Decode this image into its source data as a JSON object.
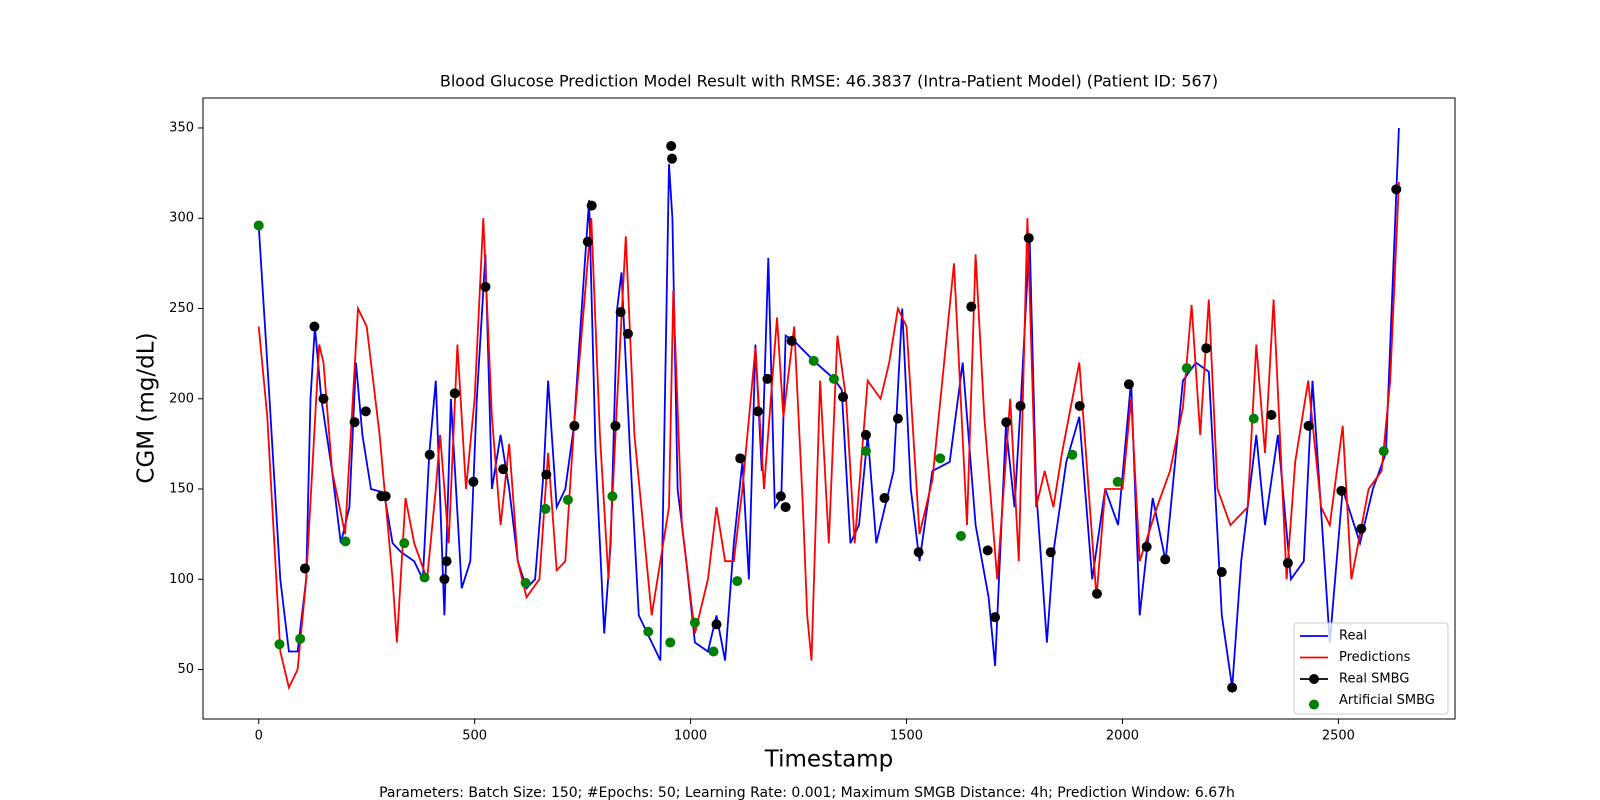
{
  "chart_data": {
    "type": "line",
    "title": "Blood Glucose Prediction Model Result with RMSE: 46.3837 (Intra-Patient Model) (Patient ID: 567)",
    "x_label": "Timestamp",
    "y_label": "CGM (mg/dL)",
    "footnote": "Parameters: Batch Size: 150; #Epochs: 50; Learning Rate: 0.001; Maximum SMGB Distance: 4h; Prediction Window: 6.67h",
    "xlim": [
      -129,
      2770
    ],
    "ylim": [
      22.6,
      366.6
    ],
    "xticks": [
      0,
      500,
      1000,
      1500,
      2000,
      2500
    ],
    "yticks": [
      50,
      100,
      150,
      200,
      250,
      300,
      350
    ],
    "legend": "lower right",
    "series": [
      {
        "name": "Real",
        "color": "#0000ff",
        "kind": "line",
        "x": [
          0,
          25,
          50,
          70,
          90,
          110,
          120,
          130,
          145,
          170,
          190,
          210,
          225,
          240,
          260,
          290,
          310,
          330,
          360,
          380,
          395,
          410,
          430,
          445,
          470,
          490,
          505,
          520,
          525,
          540,
          560,
          580,
          600,
          620,
          640,
          660,
          670,
          690,
          710,
          730,
          745,
          765,
          780,
          800,
          815,
          830,
          840,
          860,
          880,
          900,
          930,
          950,
          958,
          970,
          990,
          1010,
          1040,
          1060,
          1080,
          1100,
          1120,
          1135,
          1150,
          1165,
          1180,
          1195,
          1210,
          1220,
          1240,
          1285,
          1332,
          1350,
          1370,
          1390,
          1410,
          1430,
          1450,
          1470,
          1490,
          1510,
          1530,
          1560,
          1600,
          1630,
          1660,
          1690,
          1705,
          1730,
          1750,
          1765,
          1785,
          1800,
          1825,
          1840,
          1870,
          1900,
          1930,
          1960,
          1990,
          2020,
          2040,
          2070,
          2100,
          2140,
          2170,
          2200,
          2230,
          2254,
          2275,
          2310,
          2330,
          2360,
          2390,
          2420,
          2440,
          2480,
          2510,
          2550,
          2580,
          2610,
          2640
        ],
        "values": [
          296,
          200,
          100,
          60,
          60,
          100,
          200,
          240,
          200,
          160,
          120,
          140,
          220,
          180,
          150,
          148,
          120,
          115,
          110,
          100,
          170,
          210,
          80,
          200,
          95,
          110,
          200,
          260,
          280,
          150,
          180,
          150,
          110,
          95,
          100,
          160,
          210,
          140,
          150,
          185,
          240,
          310,
          170,
          70,
          120,
          250,
          270,
          170,
          80,
          70,
          55,
          330,
          300,
          150,
          110,
          65,
          60,
          80,
          55,
          120,
          165,
          100,
          230,
          160,
          278,
          140,
          145,
          235,
          232,
          221,
          211,
          205,
          120,
          130,
          180,
          120,
          140,
          160,
          250,
          150,
          110,
          160,
          165,
          220,
          130,
          90,
          52,
          185,
          140,
          200,
          290,
          150,
          65,
          115,
          165,
          190,
          100,
          150,
          130,
          210,
          80,
          145,
          110,
          210,
          220,
          215,
          80,
          40,
          110,
          180,
          130,
          180,
          100,
          110,
          210,
          65,
          150,
          120,
          150,
          170,
          350
        ]
      },
      {
        "name": "Predictions",
        "color": "#ff0000",
        "kind": "line",
        "x": [
          0,
          20,
          50,
          70,
          90,
          110,
          140,
          150,
          170,
          200,
          230,
          250,
          280,
          310,
          320,
          340,
          360,
          390,
          410,
          420,
          440,
          460,
          480,
          500,
          520,
          540,
          560,
          580,
          600,
          620,
          650,
          670,
          690,
          710,
          730,
          770,
          790,
          810,
          830,
          850,
          870,
          890,
          910,
          950,
          960,
          980,
          1010,
          1040,
          1060,
          1080,
          1100,
          1120,
          1150,
          1170,
          1200,
          1215,
          1240,
          1260,
          1270,
          1280,
          1300,
          1320,
          1340,
          1360,
          1380,
          1410,
          1440,
          1460,
          1480,
          1500,
          1530,
          1560,
          1610,
          1640,
          1660,
          1680,
          1710,
          1740,
          1760,
          1780,
          1800,
          1820,
          1840,
          1860,
          1900,
          1940,
          1960,
          2000,
          2020,
          2040,
          2080,
          2110,
          2140,
          2160,
          2180,
          2200,
          2220,
          2250,
          2290,
          2310,
          2330,
          2350,
          2380,
          2400,
          2430,
          2460,
          2480,
          2510,
          2530,
          2570,
          2600,
          2620,
          2640
        ],
        "values": [
          240,
          190,
          60,
          40,
          50,
          100,
          230,
          220,
          160,
          125,
          250,
          240,
          180,
          100,
          65,
          145,
          120,
          100,
          150,
          180,
          120,
          230,
          150,
          200,
          300,
          190,
          130,
          175,
          110,
          90,
          100,
          170,
          105,
          110,
          185,
          300,
          180,
          100,
          200,
          290,
          180,
          130,
          80,
          140,
          260,
          130,
          70,
          100,
          140,
          110,
          110,
          150,
          228,
          150,
          245,
          190,
          240,
          140,
          80,
          55,
          210,
          120,
          235,
          200,
          120,
          210,
          200,
          220,
          250,
          240,
          125,
          155,
          275,
          130,
          280,
          190,
          100,
          200,
          110,
          300,
          140,
          160,
          140,
          170,
          220,
          90,
          150,
          150,
          200,
          110,
          140,
          160,
          195,
          252,
          180,
          255,
          150,
          130,
          140,
          230,
          170,
          255,
          100,
          165,
          210,
          140,
          130,
          185,
          100,
          150,
          160,
          210,
          320
        ]
      },
      {
        "name": "Real SMBG",
        "color": "#000000",
        "kind": "marker-line",
        "x": [
          107,
          129,
          150,
          222,
          248,
          284,
          294,
          396,
          430,
          435,
          454,
          497,
          525,
          566,
          666,
          731,
          762,
          771,
          826,
          838,
          855,
          955,
          957,
          1060,
          1115,
          1156,
          1178,
          1209,
          1220,
          1234,
          1353,
          1406,
          1449,
          1480,
          1528,
          1650,
          1688,
          1705,
          1731,
          1764,
          1783,
          1834,
          1901,
          1941,
          2015,
          2056,
          2099,
          2194,
          2230,
          2254,
          2345,
          2383,
          2431,
          2507,
          2553,
          2634
        ],
        "values": [
          106,
          240,
          200,
          187,
          193,
          146,
          146,
          169,
          100,
          110,
          203,
          154,
          262,
          161,
          158,
          185,
          287,
          307,
          185,
          248,
          236,
          340,
          333,
          75,
          167,
          193,
          211,
          146,
          140,
          232,
          201,
          180,
          145,
          189,
          115,
          251,
          116,
          79,
          187,
          196,
          289,
          115,
          196,
          92,
          208,
          118,
          111,
          228,
          104,
          40,
          191,
          109,
          185,
          149,
          128,
          316
        ]
      },
      {
        "name": "Artificial SMBG",
        "color": "#008000",
        "kind": "marker",
        "x": [
          0,
          48,
          96,
          201,
          337,
          384,
          618,
          664,
          716,
          819,
          902,
          953,
          1010,
          1053,
          1108,
          1285,
          1332,
          1406,
          1578,
          1626,
          1884,
          1989,
          2149,
          2304,
          2605
        ],
        "values": [
          296,
          64,
          67,
          121,
          120,
          101,
          98,
          139,
          144,
          146,
          71,
          65,
          76,
          60,
          99,
          221,
          211,
          171,
          167,
          124,
          169,
          154,
          217,
          189,
          171
        ]
      }
    ]
  }
}
